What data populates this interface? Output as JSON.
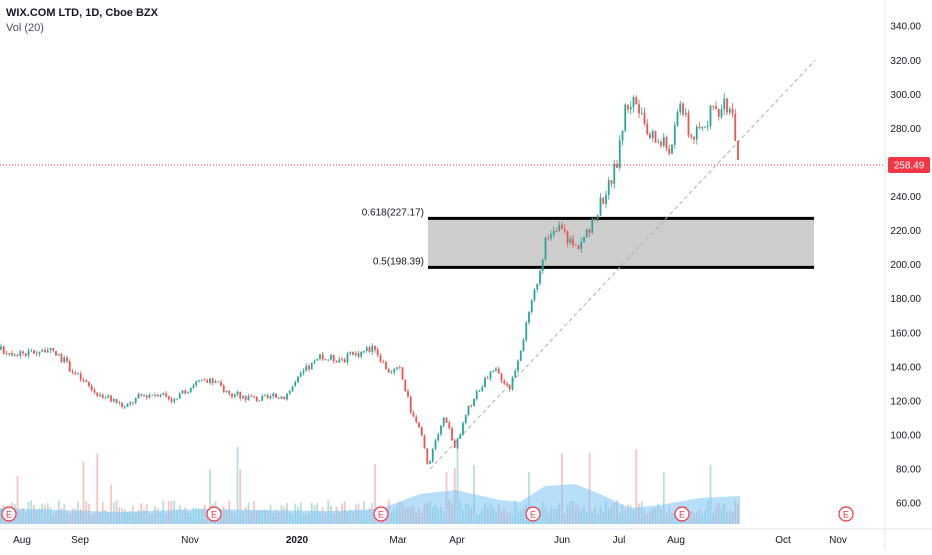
{
  "header": {
    "title": "WIX.COM LTD, 1D, Cboe BZX",
    "indicator": "Vol (20)"
  },
  "colors": {
    "up": "#26a69a",
    "down": "#ef5350",
    "volume_area": "#7cc4f5",
    "fib_band": "#c8c8c8",
    "price_line": "#f23645",
    "trendline": "#b0b0b0",
    "earnings": "#f23645"
  },
  "chart_data": {
    "type": "candlestick",
    "symbol": "WIX.COM LTD",
    "interval": "1D",
    "exchange": "Cboe BZX",
    "ylim": [
      53,
      346
    ],
    "y_ticks": [
      "340.00",
      "320.00",
      "300.00",
      "280.00",
      "260.00",
      "240.00",
      "220.00",
      "200.00",
      "180.00",
      "160.00",
      "140.00",
      "120.00",
      "100.00",
      "80.00",
      "60.00"
    ],
    "x_ticks": [
      "Aug",
      "Sep",
      "Nov",
      "2020",
      "Mar",
      "Apr",
      "Jun",
      "Jul",
      "Aug",
      "Oct",
      "Nov"
    ],
    "last_price": "258.49",
    "last_price_value": 258.49,
    "fib_levels": [
      {
        "label": "0.618(227.17)",
        "value": 227.17
      },
      {
        "label": "0.5(198.39)",
        "value": 198.39
      }
    ],
    "earnings_markers": [
      "E",
      "E",
      "E",
      "E",
      "E",
      "E"
    ],
    "price_path": [
      {
        "month": "Aug 2019",
        "price": 150
      },
      {
        "month": "Sep 2019",
        "price": 143
      },
      {
        "month": "Oct 2019",
        "price": 118
      },
      {
        "month": "Nov 2019",
        "price": 130
      },
      {
        "month": "Dec 2019",
        "price": 120
      },
      {
        "month": "Jan 2020",
        "price": 140
      },
      {
        "month": "Feb 2020",
        "price": 152
      },
      {
        "month": "Mar 2020",
        "price": 120
      },
      {
        "month": "Mar 2020 low",
        "price": 78
      },
      {
        "month": "Apr 2020",
        "price": 130
      },
      {
        "month": "May 2020",
        "price": 195
      },
      {
        "month": "Jun 2020",
        "price": 220
      },
      {
        "month": "Jul 2020",
        "price": 295
      },
      {
        "month": "Aug 2020",
        "price": 300
      },
      {
        "month": "Sep 2020",
        "price": 258.49
      }
    ],
    "grid": false,
    "volume_indicator": "Vol (20)"
  }
}
